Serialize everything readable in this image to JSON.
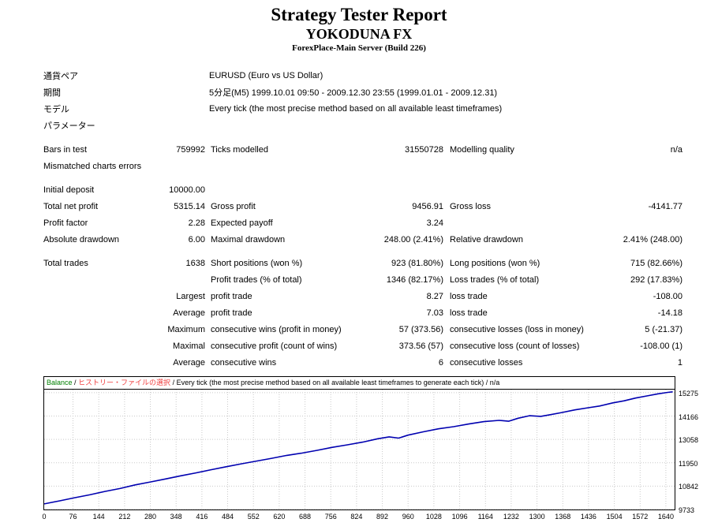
{
  "header": {
    "title": "Strategy Tester Report",
    "strategy": "YOKODUNA FX",
    "server": "ForexPlace-Main Server (Build 226)"
  },
  "settings": [
    {
      "label": "通貨ペア",
      "value": "EURUSD (Euro vs US Dollar)"
    },
    {
      "label": "期間",
      "value": "5分足(M5) 1999.10.01 09:50 - 2009.12.30 23:55 (1999.01.01 - 2009.12.31)"
    },
    {
      "label": "モデル",
      "value": "Every tick (the most precise method based on all available least timeframes)"
    },
    {
      "label": "パラメーター",
      "value": ""
    }
  ],
  "stats": {
    "rows": [
      [
        "Bars in test",
        "759992",
        "Ticks modelled",
        "31550728",
        "Modelling quality",
        "n/a"
      ],
      [
        "Mismatched charts errors",
        "",
        "",
        "",
        "",
        ""
      ],
      [
        "Initial deposit",
        "10000.00",
        "",
        "",
        "",
        ""
      ],
      [
        "Total net profit",
        "5315.14",
        "Gross profit",
        "9456.91",
        "Gross loss",
        "-4141.77"
      ],
      [
        "Profit factor",
        "2.28",
        "Expected payoff",
        "3.24",
        "",
        ""
      ],
      [
        "Absolute drawdown",
        "6.00",
        "Maximal drawdown",
        "248.00 (2.41%)",
        "Relative drawdown",
        "2.41% (248.00)"
      ],
      [
        "Total trades",
        "1638",
        "Short positions (won %)",
        "923 (81.80%)",
        "Long positions (won %)",
        "715 (82.66%)"
      ],
      [
        "",
        "",
        "Profit trades (% of total)",
        "1346 (82.17%)",
        "Loss trades (% of total)",
        "292 (17.83%)"
      ],
      [
        "",
        "Largest",
        "profit trade",
        "8.27",
        "loss trade",
        "-108.00"
      ],
      [
        "",
        "Average",
        "profit trade",
        "7.03",
        "loss trade",
        "-14.18"
      ],
      [
        "",
        "Maximum",
        "consecutive wins (profit in money)",
        "57 (373.56)",
        "consecutive losses (loss in money)",
        "5 (-21.37)"
      ],
      [
        "",
        "Maximal",
        "consecutive profit (count of wins)",
        "373.56 (57)",
        "consecutive loss (count of losses)",
        "-108.00 (1)"
      ],
      [
        "",
        "Average",
        "consecutive wins",
        "6",
        "consecutive losses",
        "1"
      ]
    ]
  },
  "chart_header": {
    "balance_label": "Balance",
    "separator": " / ",
    "ea_name": "ヒストリー・ファイルの選択",
    "model_note": "Every tick (the most precise method based on all available least timeframes to generate each tick)",
    "quality": "n/a"
  },
  "colors": {
    "balance_green": "#007f00",
    "ea_red": "#f04141",
    "line_blue": "#0000b0"
  },
  "chart_data": {
    "type": "line",
    "legend": [
      "Balance"
    ],
    "x_ticks": [
      0,
      76,
      144,
      212,
      280,
      348,
      416,
      484,
      552,
      620,
      688,
      756,
      824,
      892,
      960,
      1028,
      1096,
      1164,
      1232,
      1300,
      1368,
      1436,
      1504,
      1572,
      1640
    ],
    "y_ticks": [
      9733,
      10842,
      11950,
      13058,
      14166,
      15275
    ],
    "x_range": [
      0,
      1663
    ],
    "y_range": [
      9733,
      15420
    ],
    "grid": true,
    "grid_color": "#c9c9c9",
    "series": [
      {
        "name": "Balance",
        "color": "#0000b0",
        "x": [
          0,
          40,
          80,
          120,
          160,
          200,
          240,
          280,
          320,
          360,
          400,
          440,
          480,
          520,
          560,
          600,
          640,
          680,
          720,
          760,
          800,
          840,
          880,
          910,
          935,
          960,
          1000,
          1040,
          1080,
          1120,
          1160,
          1200,
          1225,
          1250,
          1280,
          1310,
          1335,
          1365,
          1400,
          1435,
          1465,
          1500,
          1530,
          1560,
          1590,
          1620,
          1645,
          1658
        ],
        "y": [
          10000,
          10140,
          10290,
          10430,
          10590,
          10730,
          10900,
          11040,
          11180,
          11330,
          11470,
          11620,
          11760,
          11900,
          12030,
          12160,
          12300,
          12410,
          12540,
          12680,
          12800,
          12930,
          13090,
          13180,
          13120,
          13260,
          13420,
          13560,
          13660,
          13790,
          13900,
          13960,
          13920,
          14060,
          14180,
          14150,
          14230,
          14330,
          14460,
          14560,
          14640,
          14790,
          14890,
          15020,
          15120,
          15220,
          15290,
          15315
        ]
      }
    ]
  }
}
